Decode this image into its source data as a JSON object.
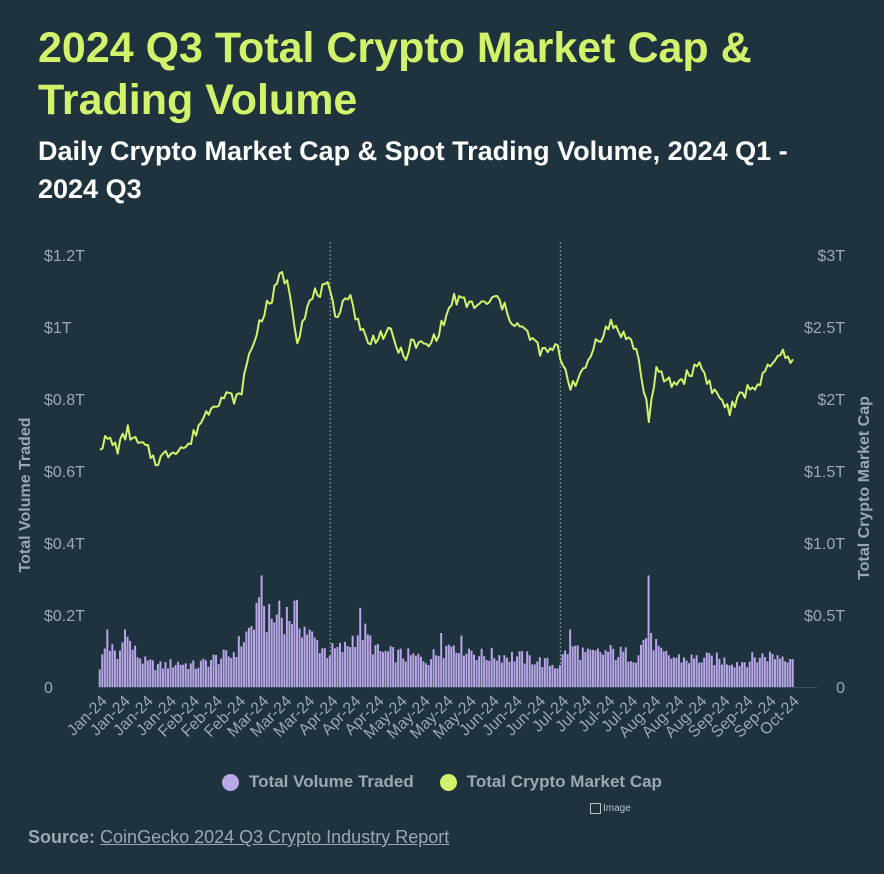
{
  "header": {
    "title": "2024 Q3 Total Crypto Market Cap & Trading Volume",
    "subtitle": "Daily Crypto Market Cap & Spot Trading Volume, 2024 Q1 - 2024 Q3"
  },
  "legend": {
    "items": [
      {
        "label": "Total Volume Traded",
        "color": "#b9a7e8"
      },
      {
        "label": "Total Crypto Market Cap",
        "color": "#d3f26b"
      }
    ]
  },
  "footer": {
    "source_label": "Source:",
    "source_link": "CoinGecko 2024 Q3 Crypto Industry Report",
    "image_placeholder": "Image"
  },
  "chart_data": {
    "type": "bar+line",
    "left_axis": {
      "title": "Total Volume Traded",
      "ticks": [
        "0",
        "$0.2T",
        "$0.4T",
        "$0.6T",
        "$0.8T",
        "$1T",
        "$1.2T"
      ],
      "range": [
        0,
        1.2
      ],
      "unit": "trillion USD"
    },
    "right_axis": {
      "title": "Total Crypto Market Cap",
      "ticks": [
        "0",
        "$0.5T",
        "$1.0T",
        "$1.5T",
        "$2T",
        "$2.5T",
        "$3T"
      ],
      "range": [
        0,
        3
      ],
      "unit": "trillion USD"
    },
    "x_tick_labels": [
      "Jan-24",
      "Jan-24",
      "Jan-24",
      "Jan-24",
      "Feb-24",
      "Feb-24",
      "Feb-24",
      "Mar-24",
      "Mar-24",
      "Mar-24",
      "Apr-24",
      "Apr-24",
      "Apr-24",
      "May-24",
      "May-24",
      "May-24",
      "May-24",
      "Jun-24",
      "Jun-24",
      "Jun-24",
      "Jul-24",
      "Jul-24",
      "Jul-24",
      "Jul-24",
      "Aug-24",
      "Aug-24",
      "Aug-24",
      "Sep-24",
      "Sep-24",
      "Sep-24",
      "Oct-24"
    ],
    "quarter_dividers": [
      "2024-04-01",
      "2024-07-01"
    ],
    "date_range": [
      "2024-01-01",
      "2024-10-01"
    ],
    "grid": false,
    "legend_position": "bottom-center",
    "market_cap_keypoints": [
      [
        "2024-01-01",
        1.68
      ],
      [
        "2024-01-04",
        1.72
      ],
      [
        "2024-01-08",
        1.66
      ],
      [
        "2024-01-12",
        1.78
      ],
      [
        "2024-01-15",
        1.7
      ],
      [
        "2024-01-19",
        1.66
      ],
      [
        "2024-01-23",
        1.57
      ],
      [
        "2024-01-26",
        1.6
      ],
      [
        "2024-01-31",
        1.66
      ],
      [
        "2024-02-05",
        1.67
      ],
      [
        "2024-02-09",
        1.82
      ],
      [
        "2024-02-15",
        1.98
      ],
      [
        "2024-02-20",
        2.02
      ],
      [
        "2024-02-25",
        2.0
      ],
      [
        "2024-02-29",
        2.3
      ],
      [
        "2024-03-05",
        2.58
      ],
      [
        "2024-03-09",
        2.7
      ],
      [
        "2024-03-13",
        2.88
      ],
      [
        "2024-03-16",
        2.75
      ],
      [
        "2024-03-19",
        2.42
      ],
      [
        "2024-03-22",
        2.6
      ],
      [
        "2024-03-26",
        2.73
      ],
      [
        "2024-03-31",
        2.77
      ],
      [
        "2024-04-03",
        2.58
      ],
      [
        "2024-04-08",
        2.73
      ],
      [
        "2024-04-12",
        2.55
      ],
      [
        "2024-04-16",
        2.38
      ],
      [
        "2024-04-20",
        2.45
      ],
      [
        "2024-04-25",
        2.45
      ],
      [
        "2024-04-30",
        2.28
      ],
      [
        "2024-05-03",
        2.38
      ],
      [
        "2024-05-10",
        2.37
      ],
      [
        "2024-05-15",
        2.5
      ],
      [
        "2024-05-20",
        2.7
      ],
      [
        "2024-05-25",
        2.66
      ],
      [
        "2024-05-31",
        2.65
      ],
      [
        "2024-06-06",
        2.7
      ],
      [
        "2024-06-12",
        2.55
      ],
      [
        "2024-06-18",
        2.45
      ],
      [
        "2024-06-24",
        2.32
      ],
      [
        "2024-06-30",
        2.35
      ],
      [
        "2024-07-05",
        2.1
      ],
      [
        "2024-07-10",
        2.17
      ],
      [
        "2024-07-15",
        2.4
      ],
      [
        "2024-07-21",
        2.52
      ],
      [
        "2024-07-26",
        2.45
      ],
      [
        "2024-07-31",
        2.35
      ],
      [
        "2024-08-05",
        1.88
      ],
      [
        "2024-08-08",
        2.18
      ],
      [
        "2024-08-15",
        2.1
      ],
      [
        "2024-08-20",
        2.16
      ],
      [
        "2024-08-25",
        2.25
      ],
      [
        "2024-08-30",
        2.07
      ],
      [
        "2024-09-06",
        1.92
      ],
      [
        "2024-09-12",
        2.05
      ],
      [
        "2024-09-18",
        2.12
      ],
      [
        "2024-09-24",
        2.27
      ],
      [
        "2024-09-29",
        2.33
      ],
      [
        "2024-10-01",
        2.24
      ]
    ],
    "volume_keypoints": [
      [
        "2024-01-01",
        0.06
      ],
      [
        "2024-01-04",
        0.13
      ],
      [
        "2024-01-08",
        0.08
      ],
      [
        "2024-01-11",
        0.15
      ],
      [
        "2024-01-15",
        0.1
      ],
      [
        "2024-01-19",
        0.07
      ],
      [
        "2024-01-25",
        0.06
      ],
      [
        "2024-02-01",
        0.07
      ],
      [
        "2024-02-08",
        0.06
      ],
      [
        "2024-02-15",
        0.08
      ],
      [
        "2024-02-22",
        0.09
      ],
      [
        "2024-02-28",
        0.15
      ],
      [
        "2024-03-05",
        0.22
      ],
      [
        "2024-03-08",
        0.19
      ],
      [
        "2024-03-12",
        0.2
      ],
      [
        "2024-03-18",
        0.21
      ],
      [
        "2024-03-25",
        0.14
      ],
      [
        "2024-03-31",
        0.1
      ],
      [
        "2024-04-07",
        0.11
      ],
      [
        "2024-04-13",
        0.17
      ],
      [
        "2024-04-20",
        0.1
      ],
      [
        "2024-04-30",
        0.09
      ],
      [
        "2024-05-10",
        0.08
      ],
      [
        "2024-05-20",
        0.13
      ],
      [
        "2024-05-31",
        0.09
      ],
      [
        "2024-06-10",
        0.09
      ],
      [
        "2024-06-20",
        0.08
      ],
      [
        "2024-06-30",
        0.06
      ],
      [
        "2024-07-05",
        0.12
      ],
      [
        "2024-07-12",
        0.09
      ],
      [
        "2024-07-20",
        0.1
      ],
      [
        "2024-07-31",
        0.09
      ],
      [
        "2024-08-05",
        0.16
      ],
      [
        "2024-08-10",
        0.09
      ],
      [
        "2024-08-20",
        0.08
      ],
      [
        "2024-08-31",
        0.08
      ],
      [
        "2024-09-10",
        0.07
      ],
      [
        "2024-09-20",
        0.09
      ],
      [
        "2024-10-01",
        0.09
      ]
    ],
    "volume_spikes": [
      [
        "2024-01-04",
        0.16
      ],
      [
        "2024-01-11",
        0.16
      ],
      [
        "2024-03-05",
        0.31
      ],
      [
        "2024-03-12",
        0.24
      ],
      [
        "2024-03-18",
        0.24
      ],
      [
        "2024-04-13",
        0.22
      ],
      [
        "2024-05-15",
        0.15
      ],
      [
        "2024-07-05",
        0.16
      ],
      [
        "2024-08-05",
        0.31
      ],
      [
        "2024-08-06",
        0.15
      ]
    ]
  }
}
